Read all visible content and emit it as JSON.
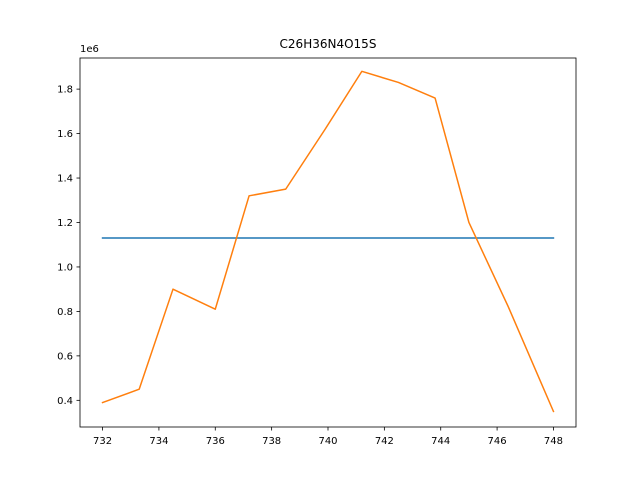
{
  "chart_data": {
    "type": "line",
    "title": "C26H36N4O15S",
    "xlabel": "",
    "ylabel": "",
    "y_offset_label": "1e6",
    "xlim": [
      731.2,
      748.8
    ],
    "ylim": [
      0.28,
      1.94
    ],
    "x_ticks": [
      732,
      734,
      736,
      738,
      740,
      742,
      744,
      746,
      748
    ],
    "y_ticks": [
      0.4,
      0.6,
      0.8,
      1.0,
      1.2,
      1.4,
      1.6,
      1.8
    ],
    "y_tick_labels": [
      "0.4",
      "0.6",
      "0.8",
      "1.0",
      "1.2",
      "1.4",
      "1.6",
      "1.8"
    ],
    "grid": false,
    "series": [
      {
        "color": "#1f77b4",
        "x": [
          732,
          748
        ],
        "y": [
          1.13,
          1.13
        ]
      },
      {
        "color": "#ff7f0e",
        "x": [
          732.0,
          733.3,
          734.5,
          736.0,
          737.2,
          738.5,
          739.9,
          741.2,
          742.5,
          743.8,
          745.0,
          746.4,
          748.0
        ],
        "y": [
          0.39,
          0.45,
          0.9,
          0.81,
          1.32,
          1.35,
          1.62,
          1.88,
          1.83,
          1.76,
          1.2,
          0.82,
          0.35
        ]
      }
    ]
  }
}
